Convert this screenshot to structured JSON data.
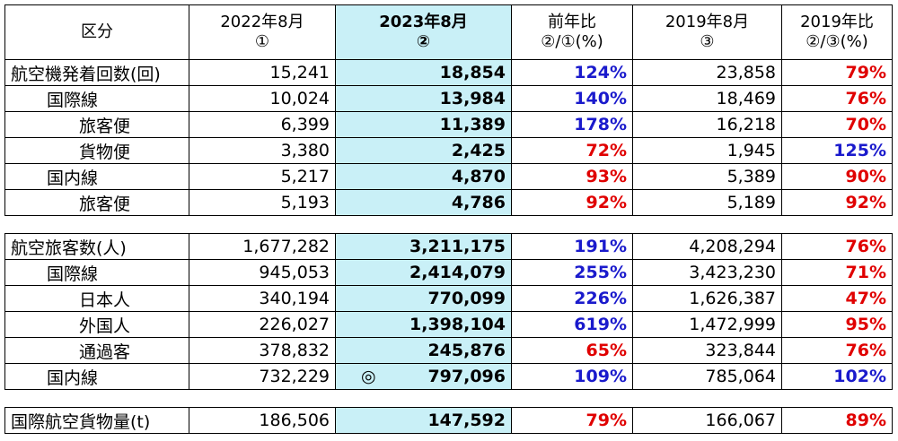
{
  "header": {
    "category": "区分",
    "col1_line1": "2022年8月",
    "col1_line2": "①",
    "col2_line1": "2023年8月",
    "col2_line2": "②",
    "col3_line1": "前年比",
    "col3_line2": "②/①(%)",
    "col4_line1": "2019年8月",
    "col4_line2": "③",
    "col5_line1": "2019年比",
    "col5_line2": "②/③(%)"
  },
  "flights": [
    {
      "label": "航空機発着回数(回)",
      "v1": "15,241",
      "v2": "18,854",
      "r1": "124%",
      "v3": "23,858",
      "r2": "79%"
    },
    {
      "label": "国際線",
      "v1": "10,024",
      "v2": "13,984",
      "r1": "140%",
      "v3": "18,469",
      "r2": "76%"
    },
    {
      "label": "旅客便",
      "v1": "6,399",
      "v2": "11,389",
      "r1": "178%",
      "v3": "16,218",
      "r2": "70%"
    },
    {
      "label": "貨物便",
      "v1": "3,380",
      "v2": "2,425",
      "r1": "72%",
      "v3": "1,945",
      "r2": "125%"
    },
    {
      "label": "国内線",
      "v1": "5,217",
      "v2": "4,870",
      "r1": "93%",
      "v3": "5,389",
      "r2": "90%"
    },
    {
      "label": "旅客便",
      "v1": "5,193",
      "v2": "4,786",
      "r1": "92%",
      "v3": "5,189",
      "r2": "92%"
    }
  ],
  "passengers": [
    {
      "label": "航空旅客数(人)",
      "v1": "1,677,282",
      "v2": "3,211,175",
      "r1": "191%",
      "v3": "4,208,294",
      "r2": "76%"
    },
    {
      "label": "国際線",
      "v1": "945,053",
      "v2": "2,414,079",
      "r1": "255%",
      "v3": "3,423,230",
      "r2": "71%"
    },
    {
      "label": "日本人",
      "v1": "340,194",
      "v2": "770,099",
      "r1": "226%",
      "v3": "1,626,387",
      "r2": "47%"
    },
    {
      "label": "外国人",
      "v1": "226,027",
      "v2": "1,398,104",
      "r1": "619%",
      "v3": "1,472,999",
      "r2": "95%"
    },
    {
      "label": "通過客",
      "v1": "378,832",
      "v2": "245,876",
      "r1": "65%",
      "v3": "323,844",
      "r2": "76%"
    },
    {
      "label": "国内線",
      "v1": "732,229",
      "v2": "797,096",
      "mark": "◎",
      "r1": "109%",
      "v3": "785,064",
      "r2": "102%"
    }
  ],
  "cargo": [
    {
      "label": "国際航空貨物量(t)",
      "v1": "186,506",
      "v2": "147,592",
      "r1": "79%",
      "v3": "166,067",
      "r2": "89%"
    }
  ],
  "colors": {
    "increase": "#1a1acc",
    "decrease": "#e00000",
    "highlight": "#c9f0f7"
  }
}
